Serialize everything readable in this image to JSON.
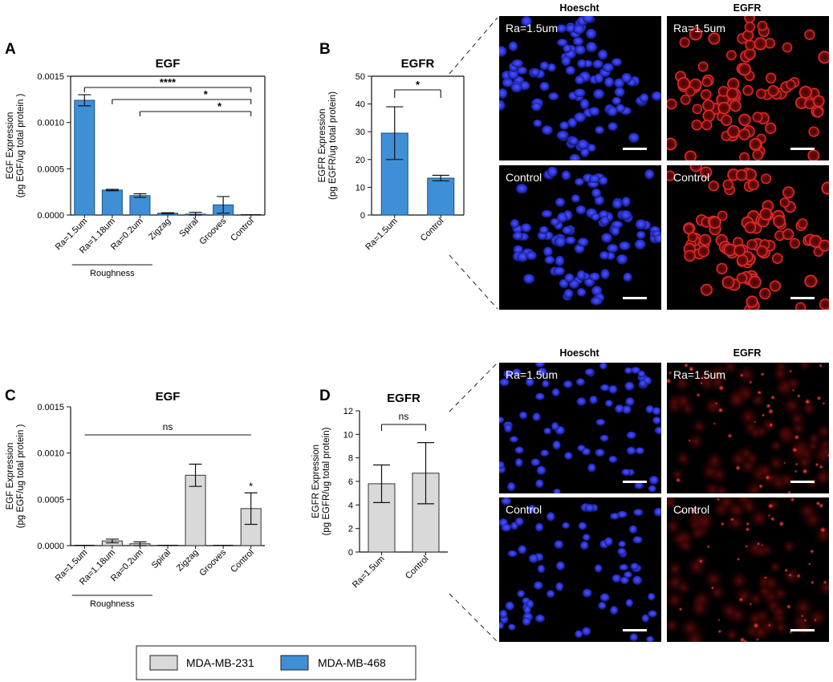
{
  "panel_letters": [
    "A",
    "B",
    "C",
    "D"
  ],
  "legend": [
    {
      "label": "MDA-MB-231",
      "color": "#d9d9d9"
    },
    {
      "label": "MDA-MB-468",
      "color": "#3f8fd6"
    }
  ],
  "image_columns": [
    "Hoescht",
    "EGFR"
  ],
  "image_row_labels": [
    "Ra=1.5um",
    "Control"
  ],
  "image_panels": [
    {
      "column": "Hoescht",
      "row": "Ra=1.5um",
      "label": "Ra=1.5um",
      "color": "blue-nuclei",
      "cell_line": "MDA-MB-468"
    },
    {
      "column": "EGFR",
      "row": "Ra=1.5um",
      "label": "Ra=1.5um",
      "color": "red-membrane",
      "cell_line": "MDA-MB-468"
    },
    {
      "column": "Hoescht",
      "row": "Control",
      "label": "Control",
      "color": "blue-nuclei",
      "cell_line": "MDA-MB-468"
    },
    {
      "column": "EGFR",
      "row": "Control",
      "label": "Control",
      "color": "red-membrane",
      "cell_line": "MDA-MB-468"
    },
    {
      "column": "Hoescht",
      "row": "Ra=1.5um",
      "label": "Ra=1.5um",
      "color": "blue-nuclei",
      "cell_line": "MDA-MB-231"
    },
    {
      "column": "EGFR",
      "row": "Ra=1.5um",
      "label": "Ra=1.5um",
      "color": "red-membrane",
      "cell_line": "MDA-MB-231"
    },
    {
      "column": "Hoescht",
      "row": "Control",
      "label": "Control",
      "color": "blue-nuclei",
      "cell_line": "MDA-MB-231"
    },
    {
      "column": "EGFR",
      "row": "Control",
      "label": "Control",
      "color": "red-membrane",
      "cell_line": "MDA-MB-231"
    }
  ],
  "chart_data": [
    {
      "panel": "A",
      "type": "bar",
      "title": "EGF",
      "ylabel": "EGF Expression\n(pg EGF/ug total protein )",
      "xlabel": "",
      "color": "#3f8fd6",
      "cell_line": "MDA-MB-468",
      "categories": [
        "Ra=1.5um",
        "Ra=1.18um",
        "Ra=0.2um",
        "Zigzag",
        "Spiral",
        "Grooves",
        "Control"
      ],
      "values": [
        0.00124,
        0.00027,
        0.00021,
        2e-05,
        1e-05,
        0.00011,
        0.0
      ],
      "errors": [
        6e-05,
        8e-06,
        2e-05,
        5e-06,
        2e-05,
        9e-05,
        0.0
      ],
      "ylim": [
        0,
        0.0015
      ],
      "yticks": [
        "0.0000",
        "0.0005",
        "0.0010",
        "0.0015"
      ],
      "ytick_values": [
        0,
        0.0005,
        0.001,
        0.0015
      ],
      "group_label": {
        "text": "Roughness",
        "from": 0,
        "to": 2
      },
      "significance": [
        {
          "from": 0,
          "to": 6,
          "label": "****"
        },
        {
          "from": 1,
          "to": 6,
          "label": "*"
        },
        {
          "from": 2,
          "to": 6,
          "label": "*"
        }
      ],
      "grid": false
    },
    {
      "panel": "B",
      "type": "bar",
      "title": "EGFR",
      "ylabel": "EGFR Expression\n(pg EGFR/ug total protein)",
      "xlabel": "",
      "color": "#3f8fd6",
      "cell_line": "MDA-MB-468",
      "categories": [
        "Ra=1.5um",
        "Control"
      ],
      "values": [
        29.5,
        13.3
      ],
      "errors": [
        9.5,
        1.0
      ],
      "ylim": [
        0,
        50
      ],
      "yticks": [
        "0",
        "10",
        "20",
        "30",
        "40",
        "50"
      ],
      "ytick_values": [
        0,
        10,
        20,
        30,
        40,
        50
      ],
      "significance": [
        {
          "from": 0,
          "to": 1,
          "label": "*"
        }
      ],
      "grid": false
    },
    {
      "panel": "C",
      "type": "bar",
      "title": "EGF",
      "ylabel": "EGF Expression\n(pg EGF/ug total protein )",
      "xlabel": "",
      "color": "#d9d9d9",
      "cell_line": "MDA-MB-231",
      "categories": [
        "Ra=1.5um",
        "Ra=1.18um",
        "Ra=0.2um",
        "Spiral",
        "Zigzag",
        "Grooves",
        "Control"
      ],
      "values": [
        0.0,
        5e-05,
        2e-05,
        0.0,
        0.00076,
        0.0,
        0.0004
      ],
      "errors": [
        0.0,
        2e-05,
        2e-05,
        0.0,
        0.00012,
        0.0,
        0.00017
      ],
      "ylim": [
        0,
        0.0015
      ],
      "yticks": [
        "0.0000",
        "0.0005",
        "0.0010",
        "0.0015"
      ],
      "ytick_values": [
        0,
        0.0005,
        0.001,
        0.0015
      ],
      "group_label": {
        "text": "Roughness",
        "from": 0,
        "to": 2
      },
      "significance": [
        {
          "from": 0,
          "to": 6,
          "label": "ns"
        }
      ],
      "point_marks": [
        {
          "index": 6,
          "label": "*"
        }
      ],
      "grid": false
    },
    {
      "panel": "D",
      "type": "bar",
      "title": "EGFR",
      "ylabel": "EGFR Expression\n(pg EGFR/ug total protein)",
      "xlabel": "",
      "color": "#d9d9d9",
      "cell_line": "MDA-MB-231",
      "categories": [
        "Ra=1.5um",
        "Control"
      ],
      "values": [
        5.8,
        6.7
      ],
      "errors": [
        1.6,
        2.6
      ],
      "ylim": [
        0,
        12
      ],
      "yticks": [
        "0",
        "2",
        "4",
        "6",
        "8",
        "10",
        "12"
      ],
      "ytick_values": [
        0,
        2,
        4,
        6,
        8,
        10,
        12
      ],
      "significance": [
        {
          "from": 0,
          "to": 1,
          "label": "ns"
        }
      ],
      "grid": false
    }
  ]
}
